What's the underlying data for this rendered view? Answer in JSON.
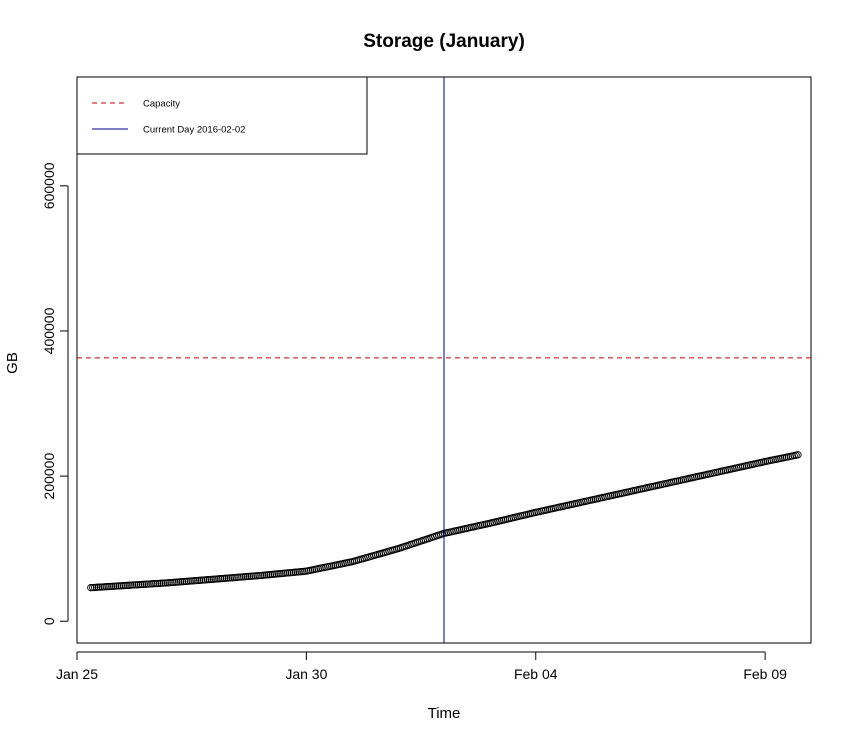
{
  "chart_data": {
    "type": "scatter",
    "title": "Storage (January)",
    "xlabel": "Time",
    "ylabel": "GB",
    "x_start": "2016-01-25",
    "x_end": "2016-02-10",
    "xlim": [
      "2016-01-25",
      "2016-02-10"
    ],
    "ylim": [
      -30000,
      750000
    ],
    "x_ticks": [
      {
        "label": "Jan 25",
        "date": "2016-01-25"
      },
      {
        "label": "Jan 30",
        "date": "2016-01-30"
      },
      {
        "label": "Feb 04",
        "date": "2016-02-04"
      },
      {
        "label": "Feb 09",
        "date": "2016-02-09"
      }
    ],
    "y_ticks": [
      0,
      200000,
      400000,
      600000
    ],
    "capacity": 363000,
    "current_day": "2016-02-02",
    "grid": false,
    "legend": {
      "position": "top-left",
      "entries": [
        {
          "label": "Capacity",
          "color": "#cc0000",
          "style": "dashed"
        },
        {
          "label": "Current Day 2016-02-02",
          "color": "#00008b",
          "style": "solid"
        }
      ]
    },
    "series": [
      {
        "marker": "open-circle",
        "color": "#000000",
        "points": [
          [
            "2016-01-25",
            45000
          ],
          [
            "2016-01-26",
            49000
          ],
          [
            "2016-01-27",
            53000
          ],
          [
            "2016-01-28",
            58000
          ],
          [
            "2016-01-29",
            63000
          ],
          [
            "2016-01-30",
            69000
          ],
          [
            "2016-01-31",
            82000
          ],
          [
            "2016-02-01",
            100000
          ],
          [
            "2016-02-02",
            121000
          ],
          [
            "2016-02-03",
            135000
          ],
          [
            "2016-02-04",
            150000
          ],
          [
            "2016-02-05",
            164000
          ],
          [
            "2016-02-06",
            178000
          ],
          [
            "2016-02-07",
            192000
          ],
          [
            "2016-02-08",
            206000
          ],
          [
            "2016-02-09",
            220000
          ],
          [
            "2016-02-10",
            233000
          ]
        ]
      }
    ]
  }
}
